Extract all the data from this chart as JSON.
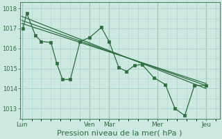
{
  "background_color": "#cce8e0",
  "grid_color": "#a8d4cc",
  "line_color": "#2d6e3e",
  "marker_color": "#2d6e3e",
  "xlabel": "Pression niveau de la mer( hPa )",
  "xlabel_fontsize": 8,
  "ylim": [
    1012.5,
    1018.3
  ],
  "yticks": [
    1013,
    1014,
    1015,
    1016,
    1017,
    1018
  ],
  "xtick_labels": [
    "Lun",
    "Ven",
    "Mar",
    "Mer",
    "Jeu"
  ],
  "xtick_positions": [
    0.0,
    3.5,
    4.5,
    7.0,
    9.5
  ],
  "xmin": -0.1,
  "xmax": 10.2,
  "day_vlines": [
    0.0,
    3.5,
    4.5,
    7.0,
    9.5
  ],
  "trend_lines": [
    {
      "x": [
        0.0,
        9.5
      ],
      "y": [
        1017.6,
        1014.0
      ]
    },
    {
      "x": [
        0.0,
        9.5
      ],
      "y": [
        1017.4,
        1014.15
      ]
    },
    {
      "x": [
        0.0,
        9.5
      ],
      "y": [
        1017.25,
        1014.25
      ]
    }
  ],
  "jagged_x": [
    0.05,
    0.25,
    0.7,
    1.0,
    1.5,
    1.8,
    2.1,
    2.5,
    3.0,
    3.5,
    4.1,
    4.5,
    5.0,
    5.4,
    5.8,
    6.2,
    6.8,
    7.4,
    7.9,
    8.4,
    8.9,
    9.5
  ],
  "jagged_y": [
    1017.0,
    1017.75,
    1016.65,
    1016.35,
    1016.3,
    1015.25,
    1014.45,
    1014.45,
    1016.35,
    1016.55,
    1017.05,
    1016.35,
    1015.05,
    1014.85,
    1015.15,
    1015.2,
    1014.55,
    1014.2,
    1013.0,
    1012.65,
    1014.15,
    1014.15
  ]
}
